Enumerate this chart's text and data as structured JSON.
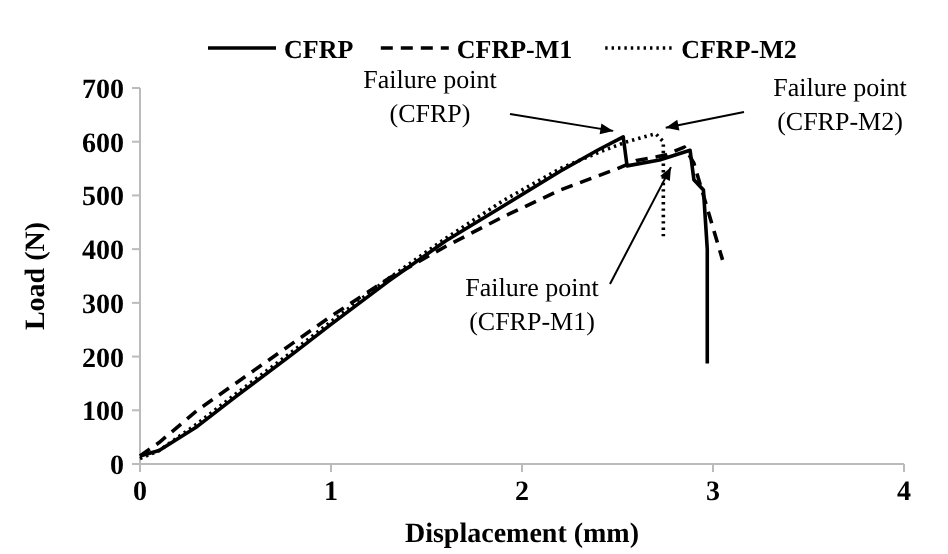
{
  "chart_data": {
    "type": "line",
    "xlabel": "Displacement (mm)",
    "ylabel": "Load (N)",
    "xlim": [
      0,
      4
    ],
    "ylim": [
      0,
      700
    ],
    "xticks": [
      0,
      1,
      2,
      3,
      4
    ],
    "yticks": [
      0,
      100,
      200,
      300,
      400,
      500,
      600,
      700
    ],
    "grid": false,
    "legend": "top",
    "marker": "none",
    "series": [
      {
        "name": "CFRP",
        "color": "#000000",
        "line_style": "solid",
        "x": [
          0,
          0.1,
          0.3,
          0.5,
          0.8,
          1.0,
          1.3,
          1.6,
          1.9,
          2.2,
          2.4,
          2.53,
          2.55,
          2.72,
          2.88,
          2.9,
          2.95,
          2.97,
          2.97
        ],
        "values": [
          15,
          25,
          70,
          125,
          205,
          260,
          340,
          415,
          480,
          545,
          585,
          609,
          555,
          566,
          584,
          529,
          510,
          400,
          187
        ]
      },
      {
        "name": "CFRP-M1",
        "color": "#000000",
        "line_style": "dashed",
        "x": [
          0,
          0.1,
          0.3,
          0.5,
          0.8,
          1.0,
          1.3,
          1.6,
          1.9,
          2.2,
          2.5,
          2.6,
          2.75,
          2.85,
          2.9,
          2.95,
          3.0,
          3.05
        ],
        "values": [
          15,
          40,
          100,
          150,
          225,
          275,
          345,
          405,
          460,
          510,
          550,
          565,
          575,
          590,
          560,
          500,
          440,
          380
        ]
      },
      {
        "name": "CFRP-M2",
        "color": "#000000",
        "line_style": "dotted",
        "x": [
          0,
          0.1,
          0.3,
          0.5,
          0.8,
          1.0,
          1.3,
          1.6,
          1.9,
          2.2,
          2.4,
          2.55,
          2.7,
          2.74,
          2.74
        ],
        "values": [
          10,
          25,
          75,
          130,
          210,
          265,
          345,
          420,
          490,
          550,
          580,
          600,
          615,
          600,
          424
        ]
      }
    ],
    "annotations": [
      {
        "text": "Failure point (CFRP)",
        "x": 2.53,
        "y": 609
      },
      {
        "text": "Failure point (CFRP-M2)",
        "x": 2.7,
        "y": 615
      },
      {
        "text": "Failure point (CFRP-M1)",
        "x": 2.78,
        "y": 575
      }
    ]
  }
}
